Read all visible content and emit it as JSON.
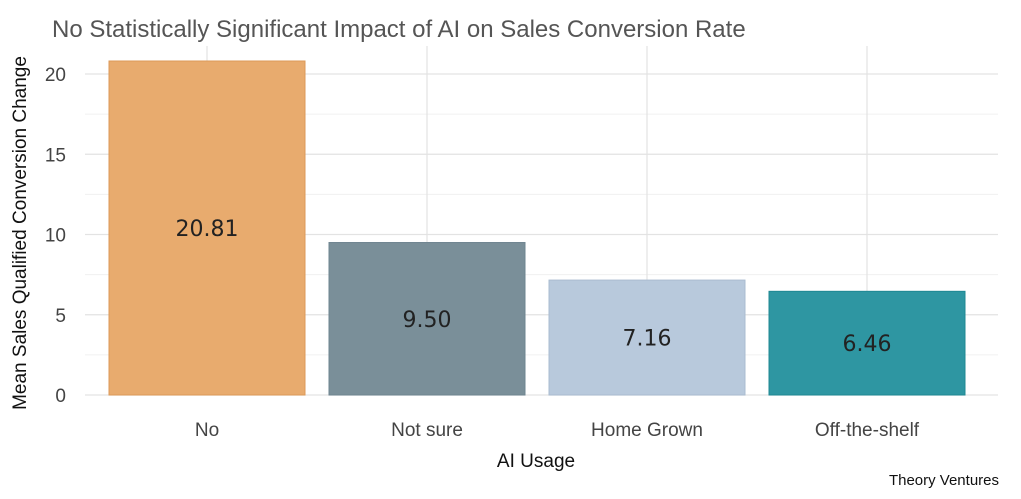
{
  "chart_data": {
    "type": "bar",
    "title": "No Statistically Significant Impact of AI on Sales Conversion Rate",
    "xlabel": "AI Usage",
    "ylabel": "Mean Sales Qualified Conversion Change",
    "categories": [
      "No",
      "Not sure",
      "Home Grown",
      "Off-the-shelf"
    ],
    "values": [
      20.81,
      9.5,
      7.16,
      6.46
    ],
    "data_labels": [
      "20.81",
      "9.50",
      "7.16",
      "6.46"
    ],
    "colors": [
      "#E8AB6E",
      "#7A8F99",
      "#B8C9DC",
      "#2E96A2"
    ],
    "edge_colors": [
      "#DC9A58",
      "#6E8490",
      "#AABCD0",
      "#1F8893"
    ],
    "yticks": [
      0,
      5,
      10,
      15,
      20
    ],
    "ylim": [
      0,
      21.3
    ],
    "grid": true,
    "legend": "none",
    "source": "Theory Ventures"
  }
}
